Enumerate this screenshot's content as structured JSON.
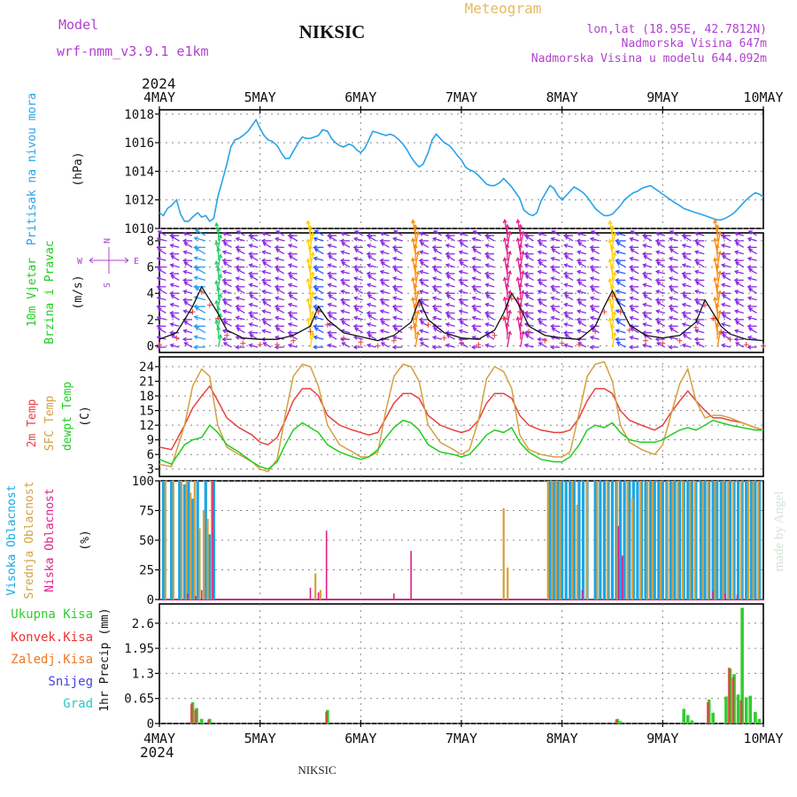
{
  "header": {
    "model_label": "Model",
    "model_name": "wrf-nmm_v3.9.1 e1km",
    "station": "NIKSIC",
    "meteogram_label": "Meteogram",
    "coords": "lon,lat (18.95E, 42.7812N)",
    "elevation": "Nadmorska Visina 647m",
    "model_elevation": "Nadmorska Visina u modelu 644.092m",
    "year": "2024",
    "footer_station": "NIKSIC",
    "credit": "made by Angel"
  },
  "colors": {
    "pressure": "#29a3e6",
    "wind_label": "#22cc22",
    "temp2m": "#e84040",
    "sfc": "#d4a040",
    "dew": "#22cc22",
    "cloud_high": "#1aa6e6",
    "cloud_mid": "#d4a040",
    "cloud_low": "#e0208a",
    "rain_total": "#33cc33",
    "rain_conv": "#ee3333",
    "freezing": "#ee7722",
    "snow": "#4444dd",
    "hail": "#22cccc",
    "compass": "#b040d0"
  },
  "chart_data": [
    {
      "type": "line",
      "panel": "pressure",
      "ylabel_1": "Pritisak na nivou mora",
      "ylabel_units": "(hPa)",
      "ylim": [
        1010,
        1018.3
      ],
      "yticks": [
        1010,
        1012,
        1014,
        1016,
        1018
      ],
      "x_days": [
        0,
        0.04,
        0.08,
        0.12,
        0.17,
        0.21,
        0.25,
        0.29,
        0.33,
        0.38,
        0.42,
        0.46,
        0.5,
        0.54,
        0.58,
        0.62,
        0.67,
        0.71,
        0.75,
        0.79,
        0.83,
        0.88,
        0.92,
        0.96,
        1.0,
        1.04,
        1.08,
        1.12,
        1.17,
        1.21,
        1.25,
        1.29,
        1.33,
        1.38,
        1.42,
        1.46,
        1.5,
        1.54,
        1.58,
        1.62,
        1.67,
        1.71,
        1.75,
        1.79,
        1.83,
        1.88,
        1.92,
        1.96,
        2.0,
        2.04,
        2.08,
        2.12,
        2.17,
        2.21,
        2.25,
        2.29,
        2.33,
        2.38,
        2.42,
        2.46,
        2.5,
        2.54,
        2.58,
        2.62,
        2.67,
        2.71,
        2.75,
        2.79,
        2.83,
        2.88,
        2.92,
        2.96,
        3.0,
        3.04,
        3.08,
        3.12,
        3.17,
        3.21,
        3.25,
        3.29,
        3.33,
        3.38,
        3.42,
        3.46,
        3.5,
        3.54,
        3.58,
        3.62,
        3.67,
        3.71,
        3.75,
        3.79,
        3.83,
        3.88,
        3.92,
        3.96,
        4.0,
        4.04,
        4.08,
        4.12,
        4.17,
        4.21,
        4.25,
        4.29,
        4.33,
        4.38,
        4.42,
        4.46,
        4.5,
        4.54,
        4.58,
        4.62,
        4.67,
        4.71,
        4.75,
        4.79,
        4.83,
        4.88,
        4.92,
        4.96,
        5.0,
        5.04,
        5.08,
        5.12,
        5.17,
        5.21,
        5.25,
        5.29,
        5.33,
        5.38,
        5.42,
        5.46,
        5.5,
        5.54,
        5.58,
        5.62,
        5.67,
        5.71,
        5.75,
        5.79,
        5.83,
        5.88,
        5.92,
        5.96,
        6.0
      ],
      "values": [
        1011.1,
        1010.9,
        1011.4,
        1011.6,
        1012.0,
        1011.0,
        1010.5,
        1010.5,
        1010.8,
        1011.1,
        1010.8,
        1010.9,
        1010.5,
        1010.7,
        1012.2,
        1013.2,
        1014.5,
        1015.7,
        1016.2,
        1016.3,
        1016.5,
        1016.8,
        1017.2,
        1017.6,
        1017.0,
        1016.5,
        1016.2,
        1016.1,
        1015.8,
        1015.3,
        1014.9,
        1014.9,
        1015.4,
        1016.0,
        1016.4,
        1016.3,
        1016.3,
        1016.4,
        1016.5,
        1016.9,
        1016.8,
        1016.3,
        1016.0,
        1015.8,
        1015.7,
        1015.9,
        1015.8,
        1015.5,
        1015.3,
        1015.6,
        1016.2,
        1016.8,
        1016.7,
        1016.6,
        1016.5,
        1016.6,
        1016.5,
        1016.2,
        1015.9,
        1015.5,
        1015.0,
        1014.6,
        1014.3,
        1014.5,
        1015.3,
        1016.2,
        1016.6,
        1016.3,
        1016.0,
        1015.8,
        1015.5,
        1015.1,
        1014.8,
        1014.3,
        1014.1,
        1014.0,
        1013.7,
        1013.4,
        1013.1,
        1013.0,
        1013.0,
        1013.2,
        1013.5,
        1013.2,
        1012.9,
        1012.5,
        1012.1,
        1011.3,
        1011.0,
        1010.9,
        1011.1,
        1011.9,
        1012.4,
        1013.0,
        1012.8,
        1012.3,
        1012.0,
        1012.3,
        1012.6,
        1012.9,
        1012.7,
        1012.5,
        1012.2,
        1011.8,
        1011.4,
        1011.1,
        1010.9,
        1010.9,
        1011.0,
        1011.3,
        1011.6,
        1012.0,
        1012.3,
        1012.5,
        1012.6,
        1012.8,
        1012.9,
        1013.0,
        1012.8,
        1012.6,
        1012.4,
        1012.2,
        1012.0,
        1011.8,
        1011.6,
        1011.4,
        1011.3,
        1011.2,
        1011.1,
        1011.0,
        1010.9,
        1010.8,
        1010.7,
        1010.6,
        1010.6,
        1010.7,
        1010.9,
        1011.1,
        1011.4,
        1011.7,
        1012.0,
        1012.3,
        1012.5,
        1012.4,
        1012.2
      ]
    },
    {
      "type": "line",
      "panel": "wind",
      "ylabel_1": "10m Vjetar",
      "ylabel_2": "Brzina i Pravac",
      "ylabel_units": "(m/s)",
      "ylim": [
        -0.5,
        8.6
      ],
      "yticks": [
        0,
        2,
        4,
        6,
        8
      ],
      "x_days": [
        0,
        0.17,
        0.33,
        0.42,
        0.5,
        0.58,
        0.67,
        0.83,
        1.0,
        1.17,
        1.33,
        1.5,
        1.58,
        1.67,
        1.83,
        2.0,
        2.17,
        2.33,
        2.5,
        2.58,
        2.67,
        2.83,
        3.0,
        3.17,
        3.33,
        3.42,
        3.5,
        3.58,
        3.67,
        3.83,
        4.0,
        4.17,
        4.33,
        4.42,
        4.5,
        4.58,
        4.67,
        4.83,
        5.0,
        5.17,
        5.33,
        5.42,
        5.5,
        5.58,
        5.67,
        5.83,
        6.0
      ],
      "values": [
        0.5,
        1.0,
        3.0,
        4.5,
        3.5,
        2.5,
        1.2,
        0.6,
        0.5,
        0.5,
        0.8,
        1.5,
        3.0,
        2.0,
        1.0,
        0.7,
        0.4,
        0.8,
        1.8,
        3.5,
        2.0,
        1.0,
        0.6,
        0.5,
        1.2,
        2.5,
        4.0,
        3.0,
        1.5,
        0.8,
        0.6,
        0.5,
        1.5,
        3.0,
        4.2,
        3.0,
        1.6,
        0.8,
        0.6,
        0.8,
        1.8,
        3.5,
        2.5,
        1.5,
        0.9,
        0.5,
        0.4
      ],
      "compass": [
        "N",
        "W",
        "E",
        "S"
      ]
    },
    {
      "type": "line",
      "panel": "temperature",
      "ylabel_1": "2m Temp",
      "ylabel_2": "SFC Temp",
      "ylabel_3": "dewpt Temp",
      "ylabel_units": "(C)",
      "ylim": [
        1.5,
        26
      ],
      "yticks": [
        3,
        6,
        9,
        12,
        15,
        18,
        21,
        24
      ],
      "x_days": [
        0,
        0.12,
        0.25,
        0.33,
        0.42,
        0.5,
        0.58,
        0.67,
        0.79,
        0.92,
        1.0,
        1.08,
        1.17,
        1.25,
        1.33,
        1.42,
        1.5,
        1.58,
        1.67,
        1.79,
        1.92,
        2.0,
        2.08,
        2.17,
        2.25,
        2.33,
        2.42,
        2.5,
        2.58,
        2.67,
        2.79,
        2.92,
        3.0,
        3.08,
        3.17,
        3.25,
        3.33,
        3.42,
        3.5,
        3.58,
        3.67,
        3.79,
        3.92,
        4.0,
        4.08,
        4.17,
        4.25,
        4.33,
        4.42,
        4.5,
        4.58,
        4.67,
        4.79,
        4.92,
        5.0,
        5.08,
        5.17,
        5.25,
        5.33,
        5.42,
        5.5,
        5.58,
        5.67,
        5.79,
        5.92,
        6.0
      ],
      "series": [
        {
          "name": "2m Temp",
          "values": [
            7.5,
            7.0,
            12.0,
            15.5,
            18.0,
            20.0,
            17.0,
            13.5,
            11.5,
            10.0,
            8.5,
            8.0,
            9.5,
            13.0,
            17.0,
            19.5,
            19.5,
            18.0,
            14.0,
            12.0,
            11.0,
            10.5,
            10.0,
            10.5,
            13.5,
            16.5,
            18.5,
            18.5,
            17.5,
            14.0,
            12.0,
            11.0,
            10.5,
            11.0,
            13.0,
            16.5,
            18.5,
            18.5,
            17.5,
            14.0,
            12.0,
            11.0,
            10.5,
            10.5,
            11.0,
            13.5,
            17.0,
            19.5,
            19.5,
            18.5,
            15.0,
            13.0,
            12.0,
            11.0,
            12.0,
            14.5,
            17.0,
            19.0,
            17.0,
            15.0,
            13.5,
            13.5,
            13.0,
            12.5,
            11.5,
            11.0
          ]
        },
        {
          "name": "SFC Temp",
          "values": [
            4.0,
            3.5,
            12.0,
            20.0,
            23.5,
            22.0,
            12.0,
            7.5,
            6.0,
            4.5,
            3.0,
            2.5,
            5.0,
            14.0,
            22.0,
            24.5,
            24.0,
            20.0,
            12.0,
            8.0,
            6.5,
            5.5,
            5.5,
            6.5,
            15.0,
            22.0,
            24.5,
            24.0,
            21.0,
            12.0,
            8.5,
            7.0,
            6.0,
            7.0,
            13.0,
            21.5,
            24.0,
            23.0,
            19.5,
            10.0,
            7.0,
            6.0,
            5.5,
            5.5,
            6.5,
            14.5,
            22.0,
            24.5,
            25.0,
            21.0,
            12.0,
            8.5,
            7.0,
            6.0,
            8.0,
            14.0,
            20.5,
            23.5,
            17.0,
            13.5,
            14.0,
            14.0,
            13.5,
            12.5,
            11.5,
            11.0
          ]
        },
        {
          "name": "dewpt Temp",
          "values": [
            5.0,
            4.0,
            8.0,
            9.0,
            9.5,
            12.0,
            10.5,
            8.0,
            6.5,
            4.5,
            3.5,
            3.0,
            4.5,
            8.0,
            11.0,
            12.5,
            11.5,
            10.5,
            8.0,
            6.5,
            5.5,
            5.0,
            5.5,
            7.0,
            9.5,
            11.5,
            13.0,
            12.5,
            11.0,
            8.0,
            6.5,
            6.0,
            5.5,
            6.0,
            8.0,
            10.0,
            11.0,
            10.5,
            11.5,
            8.5,
            6.5,
            5.0,
            4.5,
            4.5,
            5.5,
            8.0,
            11.0,
            12.0,
            11.5,
            12.5,
            10.5,
            9.0,
            8.5,
            8.5,
            9.0,
            10.0,
            11.0,
            11.5,
            11.0,
            12.0,
            13.0,
            12.5,
            12.0,
            11.5,
            11.0,
            11.0
          ]
        }
      ]
    },
    {
      "type": "bar",
      "panel": "clouds",
      "ylabel_1": "Visoka Oblacnost",
      "ylabel_2": "Srednja Oblacnost",
      "ylabel_3": "Niska Oblacnost",
      "ylabel_units": "(%)",
      "ylim": [
        0,
        100
      ],
      "yticks": [
        0,
        25,
        50,
        75,
        100
      ],
      "series": [
        {
          "name": "Visoka Oblacnost",
          "x_days": [
            0.04,
            0.12,
            0.2,
            0.25,
            0.29,
            0.33,
            0.38,
            0.46,
            0.5,
            0.54,
            3.88,
            3.92,
            3.96,
            4.0,
            4.04,
            4.08,
            4.12,
            4.17,
            4.21,
            4.25,
            4.33,
            4.38,
            4.42,
            4.46,
            4.5,
            4.54,
            4.58,
            4.62,
            4.67,
            4.71,
            4.75,
            4.79,
            4.83,
            4.88,
            4.92,
            4.96,
            5.0,
            5.04,
            5.08,
            5.12,
            5.17,
            5.21,
            5.25,
            5.29,
            5.33,
            5.38,
            5.42,
            5.46,
            5.5,
            5.54,
            5.58,
            5.62,
            5.67,
            5.71,
            5.75,
            5.79,
            5.83,
            5.88,
            5.92,
            5.96
          ],
          "values": [
            100,
            100,
            100,
            97,
            100,
            85,
            100,
            100,
            55,
            100,
            100,
            100,
            100,
            100,
            100,
            100,
            100,
            100,
            100,
            100,
            100,
            100,
            100,
            100,
            100,
            100,
            100,
            100,
            100,
            100,
            100,
            100,
            100,
            100,
            100,
            100,
            100,
            100,
            100,
            100,
            100,
            100,
            100,
            100,
            100,
            100,
            100,
            100,
            100,
            100,
            100,
            100,
            100,
            100,
            100,
            100,
            100,
            100,
            100,
            100
          ]
        },
        {
          "name": "Srednja Oblacnost",
          "x_days": [
            0.06,
            0.14,
            0.22,
            0.27,
            0.31,
            0.35,
            0.4,
            0.44,
            0.48,
            0.52,
            1.55,
            1.6,
            3.42,
            3.46,
            3.86,
            3.9,
            3.94,
            3.98,
            4.1,
            4.15,
            4.25,
            4.35,
            4.45,
            4.55,
            4.65,
            4.7,
            4.78,
            4.85,
            4.9,
            4.98,
            5.05,
            5.1,
            5.15,
            5.2,
            5.27,
            5.32,
            5.4,
            5.45,
            5.52,
            5.6,
            5.65,
            5.7,
            5.78,
            5.85,
            5.9,
            5.95
          ],
          "values": [
            100,
            100,
            100,
            100,
            90,
            100,
            60,
            75,
            68,
            100,
            22,
            8,
            77,
            27,
            100,
            100,
            100,
            100,
            100,
            80,
            100,
            100,
            100,
            100,
            100,
            85,
            100,
            100,
            100,
            100,
            100,
            100,
            100,
            100,
            100,
            100,
            100,
            100,
            100,
            100,
            100,
            100,
            100,
            100,
            100,
            100
          ]
        },
        {
          "name": "Niska Oblacnost",
          "x_days": [
            0.28,
            0.36,
            0.42,
            0.53,
            1.5,
            1.58,
            1.66,
            2.33,
            2.5,
            4.2,
            4.56,
            4.6,
            5.5,
            5.62,
            5.74
          ],
          "values": [
            5,
            3,
            8,
            100,
            10,
            6,
            58,
            5,
            41,
            8,
            62,
            37,
            7,
            5,
            4
          ]
        }
      ]
    },
    {
      "type": "bar",
      "panel": "precipitation",
      "legend": [
        "Ukupna Kisa",
        "Konvek.Kisa",
        "Zaledj.Kisa",
        "Snijeg",
        "Grad"
      ],
      "ylabel_units": "1hr Precip (mm)",
      "ylim": [
        0,
        3.1
      ],
      "yticks": [
        0,
        0.65,
        1.3,
        1.95,
        2.6
      ],
      "series": [
        {
          "name": "Ukupna Kisa",
          "x_days": [
            0.33,
            0.37,
            0.42,
            0.5,
            1.67,
            4.55,
            4.58,
            5.21,
            5.25,
            5.29,
            5.46,
            5.5,
            5.63,
            5.67,
            5.71,
            5.75,
            5.79,
            5.83,
            5.87,
            5.92,
            5.96
          ],
          "values": [
            0.55,
            0.4,
            0.12,
            0.12,
            0.35,
            0.12,
            0.06,
            0.38,
            0.22,
            0.08,
            0.62,
            0.28,
            0.7,
            1.42,
            1.28,
            0.75,
            3.0,
            0.68,
            0.72,
            0.3,
            0.12
          ]
        },
        {
          "name": "Konvek.Kisa",
          "x_days": [
            0.33,
            0.37,
            0.5,
            1.67,
            4.55,
            5.46,
            5.67,
            5.71,
            5.79
          ],
          "values": [
            0.5,
            0.35,
            0.1,
            0.3,
            0.1,
            0.55,
            1.45,
            1.2,
            0.6
          ]
        }
      ]
    }
  ],
  "x_axis": {
    "labels": [
      "4MAY",
      "5MAY",
      "6MAY",
      "7MAY",
      "8MAY",
      "9MAY",
      "10MAY"
    ]
  }
}
